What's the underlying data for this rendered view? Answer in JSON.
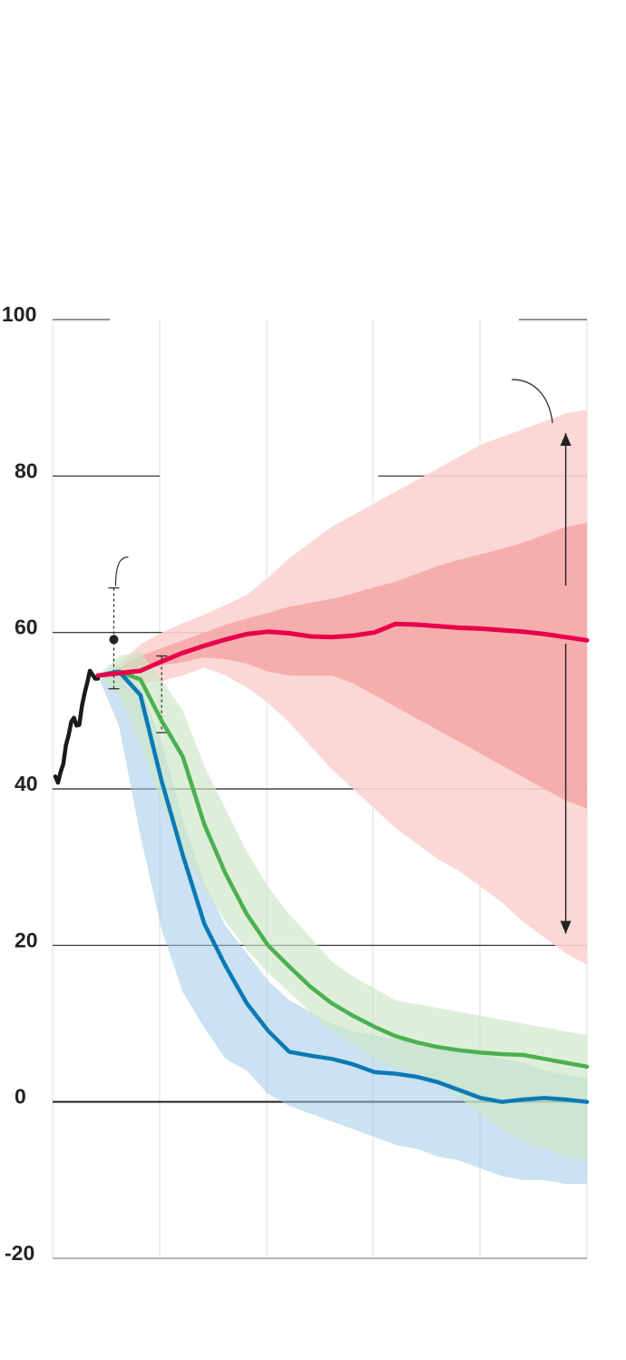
{
  "chart_data": {
    "type": "line",
    "title": "",
    "xlabel": "",
    "ylabel": "",
    "ylim": [
      -20,
      100
    ],
    "yticks": [
      100,
      80,
      60,
      40,
      20,
      0,
      -20
    ],
    "ytick_labels": [
      "100",
      "80",
      "60",
      "40",
      "20",
      "0",
      "-20"
    ],
    "grid": true,
    "legend": "none",
    "colors": {
      "history": "#1a1a1a",
      "red": "#e8004c",
      "red_band_outer": "#fbd4d2",
      "red_band_inner": "#f4a7a6",
      "green": "#4caf50",
      "green_band": "#cce6c4",
      "blue": "#0a79b5",
      "blue_band": "#9fcbe5",
      "overlap_band": "#a7cfc3",
      "grid": "#dddddd",
      "axis": "#222222"
    },
    "history": {
      "x": [
        2000,
        2000.25,
        2000.5,
        2000.75,
        2001,
        2001.25,
        2001.5,
        2001.75,
        2002,
        2002.25,
        2002.5,
        2002.75,
        2003,
        2003.25,
        2003.5,
        2003.75,
        2004
      ],
      "y": [
        41.6,
        40.8,
        42.2,
        43.2,
        45.6,
        46.9,
        48.6,
        49.1,
        48.1,
        48.2,
        50.6,
        52.2,
        53.6,
        55.1,
        54.6,
        54.1,
        54.1
      ]
    },
    "series": [
      {
        "color_key": "red",
        "x": [
          2004,
          2006,
          2008,
          2010,
          2012,
          2014,
          2016,
          2018,
          2020,
          2022,
          2024,
          2026,
          2028,
          2030,
          2032,
          2034,
          2036,
          2038,
          2040,
          2042,
          2044,
          2046,
          2048,
          2050
        ],
        "y": [
          54.5,
          54.8,
          55.1,
          56.3,
          57.4,
          58.3,
          59.1,
          59.8,
          60.1,
          59.9,
          59.5,
          59.4,
          59.6,
          60.0,
          61.1,
          61.0,
          60.8,
          60.6,
          60.5,
          60.3,
          60.1,
          59.8,
          59.4,
          59.0
        ],
        "band_outer": {
          "upper": [
            54.5,
            56.0,
            58.5,
            60.0,
            61.2,
            62.3,
            63.5,
            64.8,
            67.0,
            69.5,
            71.5,
            73.5,
            75.0,
            76.5,
            78.0,
            79.5,
            81.0,
            82.5,
            84.0,
            85.0,
            86.0,
            87.0,
            88.0,
            88.5
          ],
          "lower": [
            54.5,
            54.0,
            53.5,
            53.8,
            54.5,
            55.5,
            54.5,
            53.0,
            51.0,
            48.5,
            45.5,
            42.5,
            40.0,
            37.5,
            35.0,
            33.0,
            31.0,
            29.5,
            27.5,
            25.5,
            23.0,
            21.0,
            19.0,
            17.5
          ]
        },
        "band_inner": {
          "upper": [
            54.5,
            55.5,
            57.0,
            58.0,
            59.0,
            60.0,
            61.0,
            61.8,
            62.5,
            63.3,
            63.8,
            64.3,
            65.0,
            65.8,
            66.5,
            67.5,
            68.5,
            69.3,
            70.0,
            70.7,
            71.5,
            72.5,
            73.5,
            74.0
          ],
          "lower": [
            54.5,
            55.0,
            55.3,
            55.8,
            56.2,
            56.8,
            56.6,
            56.0,
            55.0,
            54.5,
            54.5,
            54.5,
            53.5,
            52.0,
            50.5,
            49.0,
            47.5,
            46.0,
            44.5,
            43.0,
            41.5,
            40.0,
            38.5,
            37.5
          ]
        }
      },
      {
        "color_key": "green",
        "x": [
          2004,
          2006,
          2008,
          2010,
          2012,
          2014,
          2016,
          2018,
          2020,
          2022,
          2024,
          2026,
          2028,
          2030,
          2032,
          2034,
          2036,
          2038,
          2040,
          2042,
          2044,
          2046,
          2048,
          2050
        ],
        "y": [
          54.5,
          55.0,
          54.0,
          48.7,
          44.1,
          35.5,
          29.2,
          24.0,
          20.0,
          17.3,
          14.7,
          12.6,
          11.0,
          9.6,
          8.4,
          7.6,
          7.0,
          6.6,
          6.3,
          6.1,
          6.0,
          5.5,
          5.0,
          4.5
        ],
        "band": {
          "upper": [
            54.5,
            57.0,
            57.5,
            54.0,
            50.0,
            43.0,
            37.5,
            32.0,
            27.5,
            24.0,
            21.0,
            18.0,
            16.0,
            14.5,
            13.0,
            12.5,
            12.0,
            11.5,
            11.0,
            10.5,
            10.0,
            9.5,
            9.0,
            8.5
          ],
          "lower": [
            54.5,
            52.0,
            46.0,
            38.0,
            32.0,
            27.5,
            23.0,
            19.5,
            16.5,
            14.0,
            11.5,
            9.0,
            7.5,
            5.5,
            4.5,
            3.5,
            2.5,
            0.5,
            -1.5,
            -3.5,
            -5.0,
            -6.0,
            -7.0,
            -7.5
          ]
        }
      },
      {
        "color_key": "blue",
        "x": [
          2004,
          2006,
          2008,
          2010,
          2012,
          2014,
          2016,
          2018,
          2020,
          2022,
          2024,
          2026,
          2028,
          2030,
          2032,
          2034,
          2036,
          2038,
          2040,
          2042,
          2044,
          2046,
          2048,
          2050
        ],
        "y": [
          54.5,
          55.0,
          52.0,
          41.0,
          31.5,
          22.8,
          17.4,
          12.6,
          9.1,
          6.4,
          5.9,
          5.5,
          4.8,
          3.8,
          3.6,
          3.2,
          2.5,
          1.5,
          0.5,
          0.0,
          0.3,
          0.5,
          0.3,
          0.0
        ],
        "band": {
          "upper": [
            54.5,
            55.5,
            53.0,
            46.0,
            36.0,
            28.0,
            22.5,
            19.0,
            15.5,
            13.0,
            11.5,
            10.0,
            9.0,
            8.5,
            8.0,
            7.5,
            7.0,
            6.5,
            6.0,
            5.5,
            5.0,
            4.0,
            3.5,
            3.0
          ],
          "lower": [
            54.5,
            48.0,
            34.0,
            22.0,
            14.0,
            9.5,
            5.5,
            4.0,
            1.0,
            -0.5,
            -1.5,
            -2.5,
            -3.5,
            -4.5,
            -5.5,
            -6.0,
            -7.0,
            -7.5,
            -8.5,
            -9.5,
            -10.0,
            -10.0,
            -10.5,
            -10.5
          ]
        }
      }
    ],
    "annotations": {
      "marker_point": {
        "x": 2005.5,
        "y": 59.1
      },
      "marker_whisker_top": 65.7,
      "marker_whisker_bottom": 52.8,
      "second_whisker_x": 2010,
      "second_whisker_top": 57.0,
      "second_whisker_bottom": 47.2,
      "range_arrow_x": 2048,
      "range_arrow_top": 85.5,
      "range_arrow_bottom": 21.5
    }
  }
}
